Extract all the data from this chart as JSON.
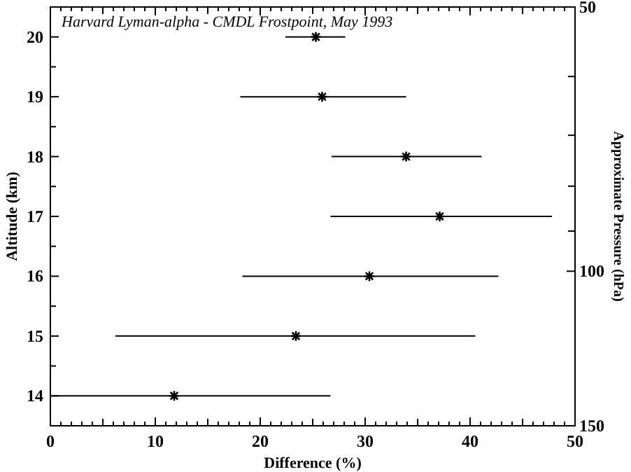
{
  "chart_data": {
    "type": "scatter",
    "title": "Harvard Lyman-alpha - CMDL Frostpoint, May 1993",
    "xlabel": "Difference (%)",
    "ylabel": "Altitude (km)",
    "y2label": "Approximate Pressure (hPa)",
    "x": [
      25.3,
      25.9,
      33.9,
      37.1,
      30.4,
      23.4,
      11.8
    ],
    "values": [
      20,
      19,
      18,
      17,
      16,
      15,
      14
    ],
    "xerrors": [
      [
        22.4,
        28.1
      ],
      [
        18.1,
        33.9
      ],
      [
        26.8,
        41.1
      ],
      [
        26.7,
        47.8
      ],
      [
        18.3,
        42.7
      ],
      [
        6.2,
        40.5
      ],
      [
        0,
        26.7
      ]
    ],
    "color": "#000000",
    "marker": "cross",
    "xlim": [
      0,
      50
    ],
    "xticks": [
      0,
      {
        "value": 1,
        "label": null
      },
      {
        "value": 2,
        "label": null
      },
      {
        "value": 3,
        "label": null
      },
      {
        "value": 4,
        "label": null
      },
      {
        "value": 5,
        "label": null
      },
      {
        "value": 6,
        "label": null
      },
      {
        "value": 7,
        "label": null
      },
      {
        "value": 8,
        "label": null
      },
      {
        "value": 9,
        "label": null
      },
      10,
      {
        "value": 11,
        "label": null
      },
      {
        "value": 12,
        "label": null
      },
      {
        "value": 13,
        "label": null
      },
      {
        "value": 14,
        "label": null
      },
      {
        "value": 15,
        "label": null
      },
      {
        "value": 16,
        "label": null
      },
      {
        "value": 17,
        "label": null
      },
      {
        "value": 18,
        "label": null
      },
      {
        "value": 19,
        "label": null
      },
      20,
      {
        "value": 21,
        "label": null
      },
      {
        "value": 22,
        "label": null
      },
      {
        "value": 23,
        "label": null
      },
      {
        "value": 24,
        "label": null
      },
      {
        "value": 25,
        "label": null
      },
      {
        "value": 26,
        "label": null
      },
      {
        "value": 27,
        "label": null
      },
      {
        "value": 28,
        "label": null
      },
      {
        "value": 29,
        "label": null
      },
      30,
      {
        "value": 31,
        "label": null
      },
      {
        "value": 32,
        "label": null
      },
      {
        "value": 33,
        "label": null
      },
      {
        "value": 34,
        "label": null
      },
      {
        "value": 35,
        "label": null
      },
      {
        "value": 36,
        "label": null
      },
      {
        "value": 37,
        "label": null
      },
      {
        "value": 38,
        "label": null
      },
      {
        "value": 39,
        "label": null
      },
      40,
      {
        "value": 41,
        "label": null
      },
      {
        "value": 42,
        "label": null
      },
      {
        "value": 43,
        "label": null
      },
      {
        "value": 44,
        "label": null
      },
      {
        "value": 45,
        "label": null
      },
      {
        "value": 46,
        "label": null
      },
      {
        "value": 47,
        "label": null
      },
      {
        "value": 48,
        "label": null
      },
      {
        "value": 49,
        "label": null
      },
      50
    ],
    "ylim": [
      13.5,
      20.5
    ],
    "yticks": [
      14,
      {
        "value": 14.5,
        "label": null
      },
      15,
      {
        "value": 15.5,
        "label": null
      },
      16,
      {
        "value": 16.5,
        "label": null
      },
      17,
      {
        "value": 17.5,
        "label": null
      },
      18,
      {
        "value": 18.5,
        "label": null
      },
      19,
      {
        "value": 19.5,
        "label": null
      },
      20
    ],
    "y2lim": [
      150,
      50
    ],
    "y2ticks": [
      50,
      {
        "value": 60,
        "label": null
      },
      {
        "value": 70,
        "label": null
      },
      {
        "value": 80,
        "label": null
      },
      {
        "value": 90,
        "label": null
      },
      100,
      150
    ],
    "log": "y2",
    "grid": false
  }
}
